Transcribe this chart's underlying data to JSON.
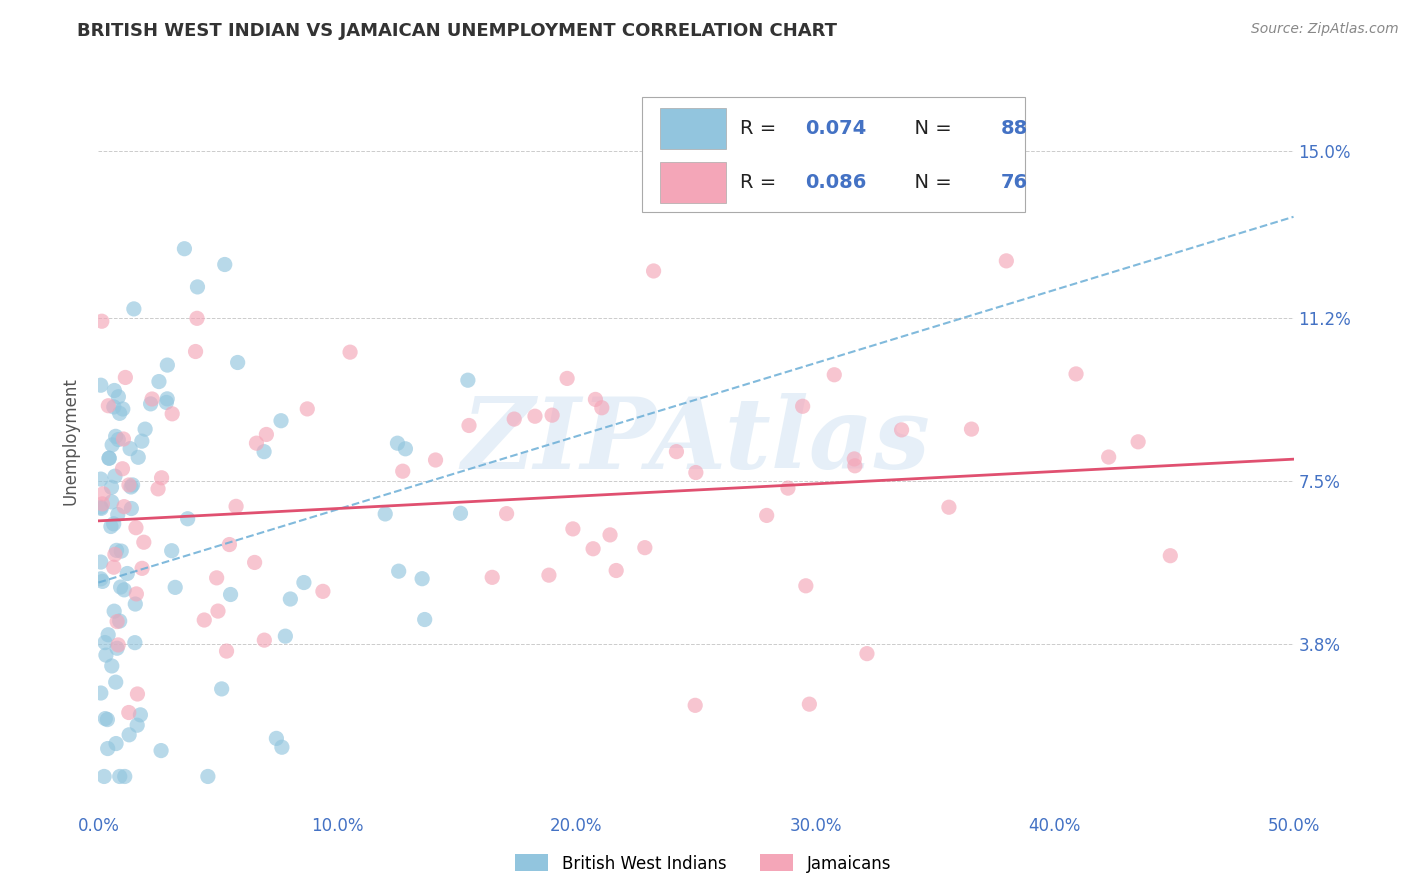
{
  "title": "BRITISH WEST INDIAN VS JAMAICAN UNEMPLOYMENT CORRELATION CHART",
  "source_text": "Source: ZipAtlas.com",
  "ylabel": "Unemployment",
  "xmin": 0.0,
  "xmax": 0.5,
  "ymin": 0.0,
  "ymax": 0.168,
  "yticks": [
    0.038,
    0.075,
    0.112,
    0.15
  ],
  "ytick_labels": [
    "3.8%",
    "7.5%",
    "11.2%",
    "15.0%"
  ],
  "xticks": [
    0.0,
    0.1,
    0.2,
    0.3,
    0.4,
    0.5
  ],
  "xtick_labels": [
    "0.0%",
    "10.0%",
    "20.0%",
    "30.0%",
    "40.0%",
    "50.0%"
  ],
  "blue_color": "#92c5de",
  "pink_color": "#f4a6b8",
  "blue_R": 0.074,
  "blue_N": 88,
  "pink_R": 0.086,
  "pink_N": 76,
  "trend_blue_color": "#6baed6",
  "trend_pink_color": "#e05070",
  "legend_label_blue": "British West Indians",
  "legend_label_pink": "Jamaicans",
  "watermark": "ZIPAtlas",
  "background_color": "#ffffff",
  "title_color": "#333333",
  "tick_color": "#4472c4",
  "grid_color": "#cccccc"
}
